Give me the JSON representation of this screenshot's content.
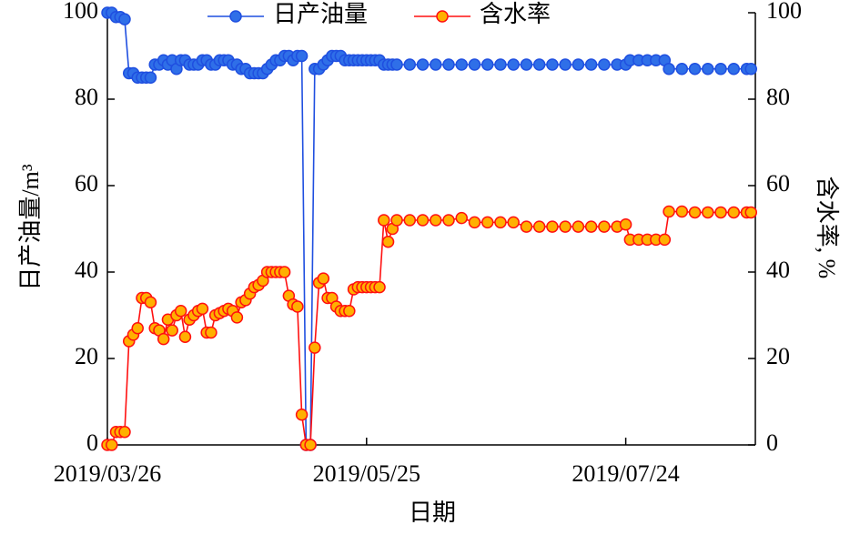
{
  "chart_data": {
    "type": "line",
    "xlabel": "日期",
    "ylabel": "日产油量/m³",
    "y2label": "含水率, %",
    "xlim": [
      "2019/03/26",
      "2019/08/23"
    ],
    "xticks": [
      "2019/03/26",
      "2019/05/25",
      "2019/07/24"
    ],
    "ylim": [
      0,
      100
    ],
    "yticks": [
      0,
      20,
      40,
      60,
      80,
      100
    ],
    "y2lim": [
      0,
      100
    ],
    "y2ticks": [
      0,
      20,
      40,
      60,
      80,
      100
    ],
    "legend": "top",
    "x": [
      "2019/03/26",
      "2019/03/27",
      "2019/03/28",
      "2019/03/29",
      "2019/03/30",
      "2019/03/31",
      "2019/04/01",
      "2019/04/02",
      "2019/04/03",
      "2019/04/04",
      "2019/04/05",
      "2019/04/06",
      "2019/04/07",
      "2019/04/08",
      "2019/04/09",
      "2019/04/10",
      "2019/04/11",
      "2019/04/12",
      "2019/04/13",
      "2019/04/14",
      "2019/04/15",
      "2019/04/16",
      "2019/04/17",
      "2019/04/18",
      "2019/04/19",
      "2019/04/20",
      "2019/04/21",
      "2019/04/22",
      "2019/04/23",
      "2019/04/24",
      "2019/04/25",
      "2019/04/26",
      "2019/04/27",
      "2019/04/28",
      "2019/04/29",
      "2019/04/30",
      "2019/05/01",
      "2019/05/02",
      "2019/05/03",
      "2019/05/04",
      "2019/05/05",
      "2019/05/06",
      "2019/05/07",
      "2019/05/08",
      "2019/05/09",
      "2019/05/10",
      "2019/05/11",
      "2019/05/12",
      "2019/05/13",
      "2019/05/14",
      "2019/05/15",
      "2019/05/16",
      "2019/05/17",
      "2019/05/18",
      "2019/05/19",
      "2019/05/20",
      "2019/05/21",
      "2019/05/22",
      "2019/05/23",
      "2019/05/24",
      "2019/05/25",
      "2019/05/26",
      "2019/05/27",
      "2019/05/28",
      "2019/05/29",
      "2019/05/30",
      "2019/05/31",
      "2019/06/01",
      "2019/06/04",
      "2019/06/07",
      "2019/06/10",
      "2019/06/13",
      "2019/06/16",
      "2019/06/19",
      "2019/06/22",
      "2019/06/25",
      "2019/06/28",
      "2019/07/01",
      "2019/07/04",
      "2019/07/07",
      "2019/07/10",
      "2019/07/13",
      "2019/07/16",
      "2019/07/19",
      "2019/07/22",
      "2019/07/24",
      "2019/07/25",
      "2019/07/27",
      "2019/07/29",
      "2019/07/31",
      "2019/08/02",
      "2019/08/03",
      "2019/08/06",
      "2019/08/09",
      "2019/08/12",
      "2019/08/15",
      "2019/08/18",
      "2019/08/21",
      "2019/08/22"
    ],
    "series": [
      {
        "name": "日产油量",
        "color": "#1f4fe0",
        "marker_color": "#2f6fe8",
        "axis": "y",
        "values": [
          100,
          100,
          99,
          99,
          98.5,
          86,
          86,
          85,
          85,
          85,
          85,
          88,
          88,
          89,
          88,
          89,
          87,
          89,
          89,
          88,
          88,
          88,
          89,
          89,
          88,
          88,
          89,
          89,
          89,
          88,
          88,
          87,
          87,
          86,
          86,
          86,
          86,
          87,
          88,
          89,
          89,
          90,
          90,
          89,
          90,
          90,
          0,
          0,
          87,
          87,
          88,
          89,
          90,
          90,
          90,
          89,
          89,
          89,
          89,
          89,
          89,
          89,
          89,
          89,
          88,
          88,
          88,
          88,
          88,
          88,
          88,
          88,
          88,
          88,
          88,
          88,
          88,
          88,
          88,
          88,
          88,
          88,
          88,
          88,
          88,
          88,
          89,
          89,
          89,
          89,
          89,
          87,
          87,
          87,
          87,
          87,
          87,
          87,
          87
        ]
      },
      {
        "name": "含水率",
        "color": "#ff1010",
        "marker_color": "#ffb000",
        "axis": "y2",
        "values": [
          0,
          0,
          3,
          3,
          3,
          24,
          25.5,
          27,
          34,
          34,
          33,
          27,
          26.5,
          24.5,
          29,
          26.5,
          30,
          31,
          25,
          29,
          30,
          31,
          31.5,
          26,
          26,
          30,
          30.5,
          31,
          31.5,
          31,
          29.5,
          33,
          33.5,
          35,
          36.5,
          37,
          38,
          40,
          40,
          40,
          40,
          40,
          34.5,
          32.5,
          32,
          7,
          0,
          0,
          22.5,
          37.5,
          38.5,
          34,
          34,
          32,
          31,
          31,
          31,
          36,
          36.5,
          36.5,
          36.5,
          36.5,
          36.5,
          36.5,
          52,
          47,
          50,
          52,
          52,
          52,
          52,
          52,
          52.5,
          51.5,
          51.5,
          51.5,
          51.5,
          50.5,
          50.5,
          50.5,
          50.5,
          50.5,
          50.5,
          50.5,
          50.5,
          51,
          47.5,
          47.5,
          47.5,
          47.5,
          47.5,
          54,
          54,
          53.8,
          53.8,
          53.8,
          53.8,
          53.8,
          53.8
        ]
      }
    ]
  }
}
